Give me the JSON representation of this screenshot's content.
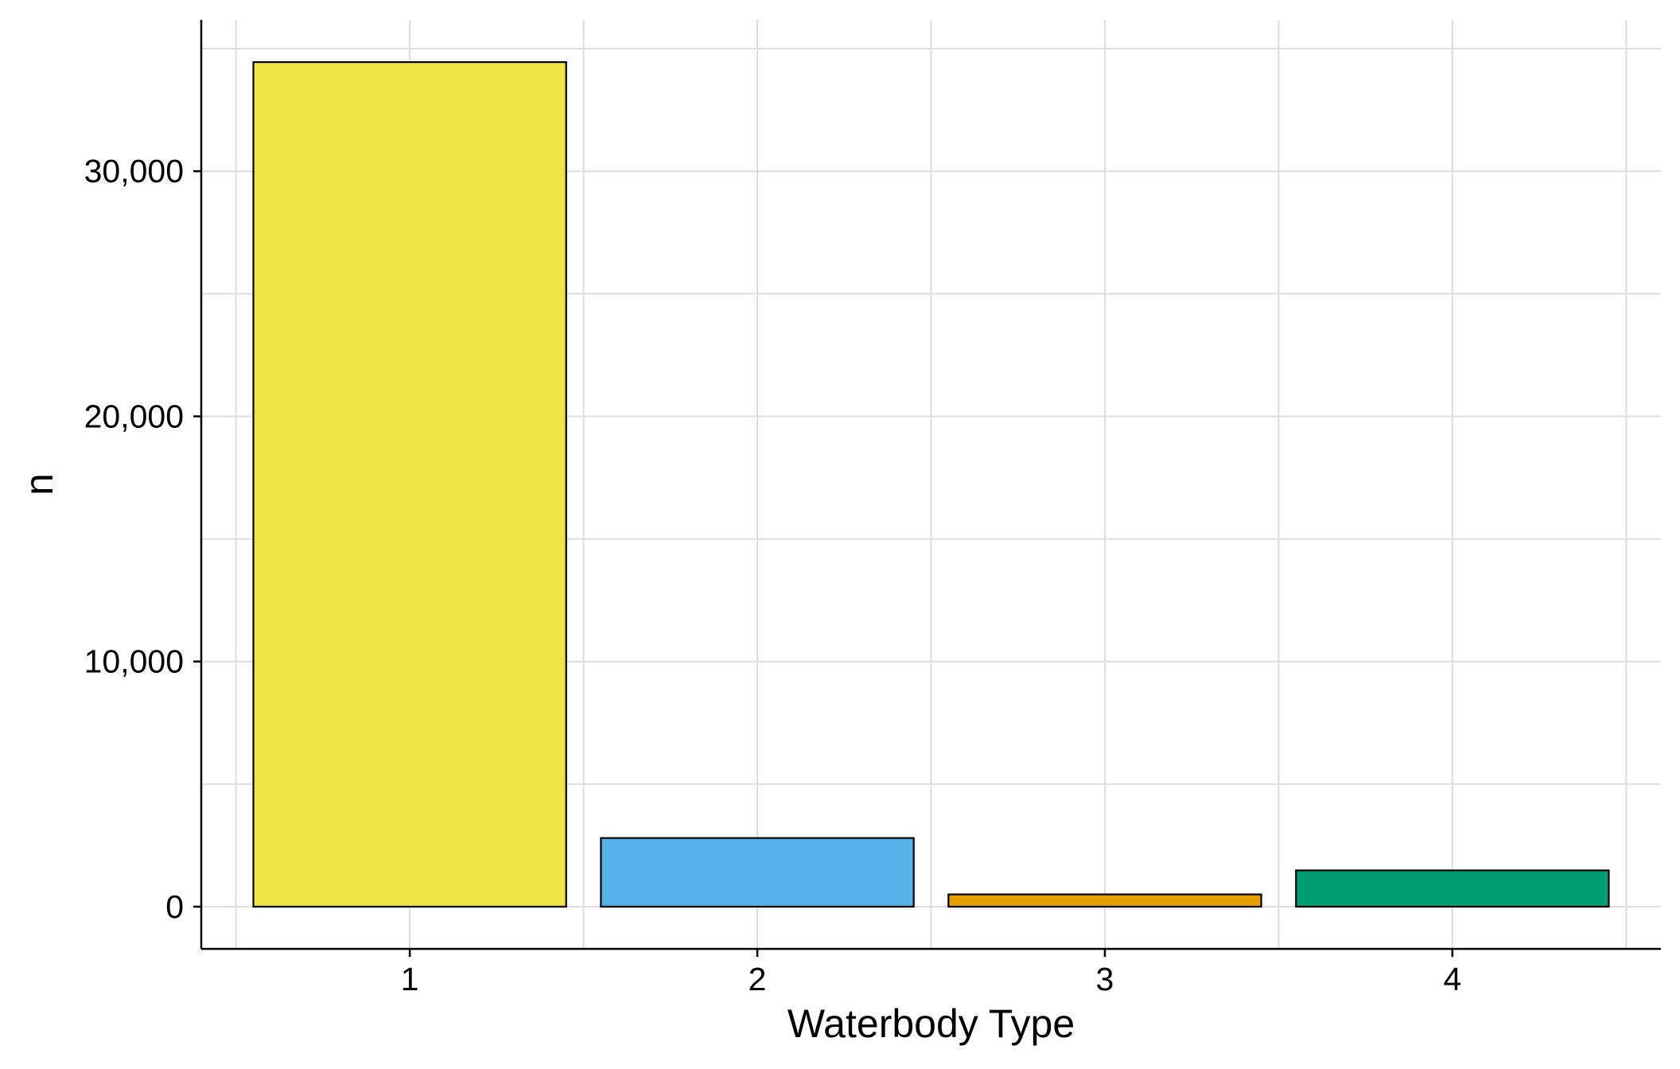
{
  "chart_data": {
    "type": "bar",
    "categories": [
      "1",
      "2",
      "3",
      "4"
    ],
    "values": [
      34450,
      2800,
      500,
      1480
    ],
    "colors": [
      "#F0E442",
      "#56B4E9",
      "#E69F00",
      "#009E73"
    ],
    "bar_outline_color": "#000000",
    "title": "",
    "xlabel": "Waterbody Type",
    "ylabel": "n",
    "y_ticks": [
      0,
      10000,
      20000,
      30000
    ],
    "y_tick_labels": [
      "0",
      "10,000",
      "20,000",
      "30,000"
    ],
    "ylim": [
      -1722,
      36172
    ],
    "grid": true,
    "grid_color": "#dddddd",
    "legend": "none"
  }
}
